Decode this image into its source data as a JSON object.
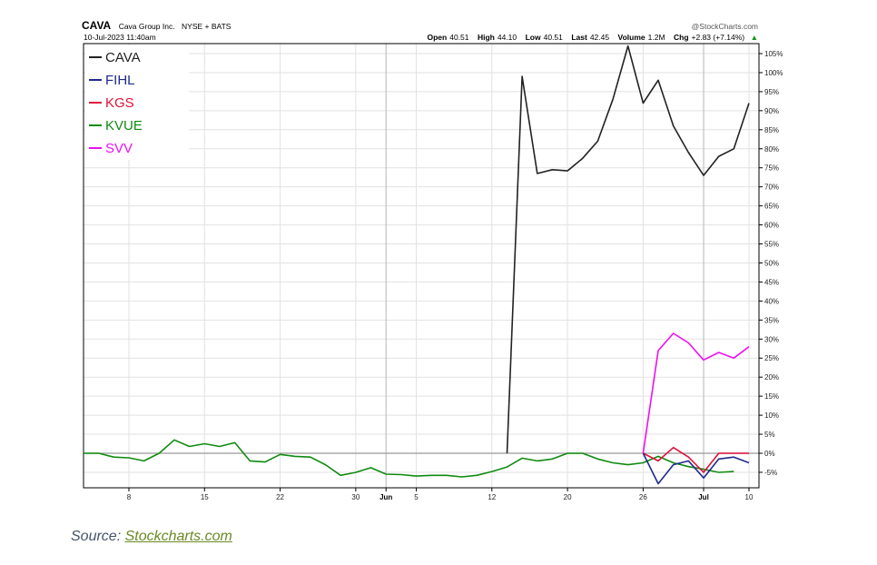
{
  "header": {
    "symbol": "CAVA",
    "company": "Cava Group Inc.",
    "exchange": "NYSE + BATS",
    "date": "10-Jul-2023 11:40am",
    "watermark": "@StockCharts.com",
    "open_label": "Open",
    "open": "40.51",
    "high_label": "High",
    "high": "44.10",
    "low_label": "Low",
    "low": "40.51",
    "last_label": "Last",
    "last": "42.45",
    "volume_label": "Volume",
    "volume": "1.2M",
    "chg_label": "Chg",
    "chg": "+2.83 (+7.14%)",
    "chg_arrow": "▲"
  },
  "source": {
    "prefix": "Source:",
    "link": "Stockcharts.com"
  },
  "chart_data": {
    "type": "line",
    "y_unit": "%",
    "ylim": [
      -9,
      108
    ],
    "x_ticks": [
      {
        "i": 3,
        "label": "8",
        "bold": false
      },
      {
        "i": 8,
        "label": "15",
        "bold": false
      },
      {
        "i": 13,
        "label": "22",
        "bold": false
      },
      {
        "i": 18,
        "label": "30",
        "bold": false
      },
      {
        "i": 20,
        "label": "Jun",
        "bold": true
      },
      {
        "i": 22,
        "label": "5",
        "bold": false
      },
      {
        "i": 27,
        "label": "12",
        "bold": false
      },
      {
        "i": 32,
        "label": "20",
        "bold": false
      },
      {
        "i": 37,
        "label": "26",
        "bold": false
      },
      {
        "i": 41,
        "label": "Jul",
        "bold": true
      },
      {
        "i": 44,
        "label": "10",
        "bold": false
      }
    ],
    "y_ticks": [
      105,
      100,
      95,
      90,
      85,
      80,
      75,
      70,
      65,
      60,
      55,
      50,
      45,
      40,
      35,
      30,
      25,
      20,
      15,
      10,
      5,
      0,
      -5
    ],
    "n_points": 45,
    "grid": true,
    "legend_position": "top-left",
    "series": [
      {
        "name": "CAVA",
        "color": "#222222",
        "start": 28,
        "values": [
          0,
          99,
          73.5,
          74.5,
          74.2,
          77.5,
          82,
          93,
          107,
          92,
          98,
          86,
          79,
          73,
          78,
          80,
          92
        ]
      },
      {
        "name": "FIHL",
        "color": "#1f2a8c",
        "start": 37,
        "values": [
          0,
          -8,
          -3,
          -2,
          -6.5,
          -1.5,
          -1,
          -2.5
        ]
      },
      {
        "name": "KGS",
        "color": "#e0103a",
        "start": 37,
        "values": [
          0,
          -2,
          1.5,
          -1,
          -5,
          0,
          0,
          0
        ]
      },
      {
        "name": "KVUE",
        "color": "#108a10",
        "start": 0,
        "values": [
          0,
          0,
          -1,
          -1.2,
          -2,
          0,
          3.5,
          1.8,
          2.5,
          1.8,
          2.8,
          -2,
          -2.3,
          -0.3,
          -0.8,
          -1,
          -3,
          -5.8,
          -5,
          -3.8,
          -5.5,
          -5.6,
          -6,
          -5.8,
          -5.8,
          -6.2,
          -5.8,
          -4.8,
          -3.6,
          -1.3,
          -2,
          -1.5,
          0,
          0,
          -1.5,
          -2.5,
          -3,
          -2.5,
          -0.8,
          -2.5,
          -3.5,
          -4.2,
          -5,
          -4.8
        ]
      },
      {
        "name": "SVV",
        "color": "#ee10ee",
        "start": 37,
        "values": [
          0,
          27,
          31.5,
          29,
          24.5,
          26.5,
          25,
          28
        ]
      }
    ]
  }
}
